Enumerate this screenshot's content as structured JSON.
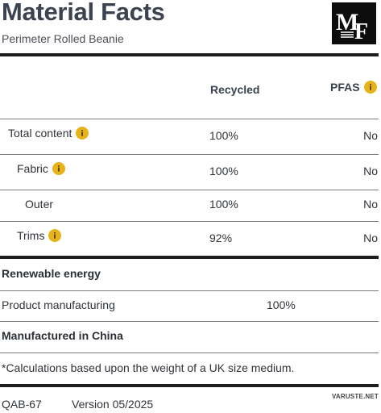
{
  "header": {
    "title": "Material Facts",
    "subtitle": "Perimeter Rolled Beanie",
    "logo_text": "MF"
  },
  "table": {
    "columns": [
      "Recycled",
      "PFAS"
    ],
    "rows": [
      {
        "label": "Total content",
        "recycled": "100%",
        "pfas": "No",
        "info": true
      },
      {
        "label": "Fabric",
        "recycled": "100%",
        "pfas": "No",
        "info": true
      },
      {
        "label": "Outer",
        "recycled": "100%",
        "pfas": "No",
        "info": false
      },
      {
        "label": "Trims",
        "recycled": "92%",
        "pfas": "No",
        "info": true
      }
    ]
  },
  "energy": {
    "heading": "Renewable energy",
    "row_label": "Product manufacturing",
    "row_value": "100%"
  },
  "origin": "Manufactured in China",
  "footnote": "*Calculations based upon the weight of a UK size medium.",
  "footer": {
    "code": "QAB-67",
    "version": "Version 05/2025"
  },
  "watermark": "VARUSTE.NET",
  "colors": {
    "info_badge": "#e8b21a",
    "rule": "#1e1e1e"
  }
}
